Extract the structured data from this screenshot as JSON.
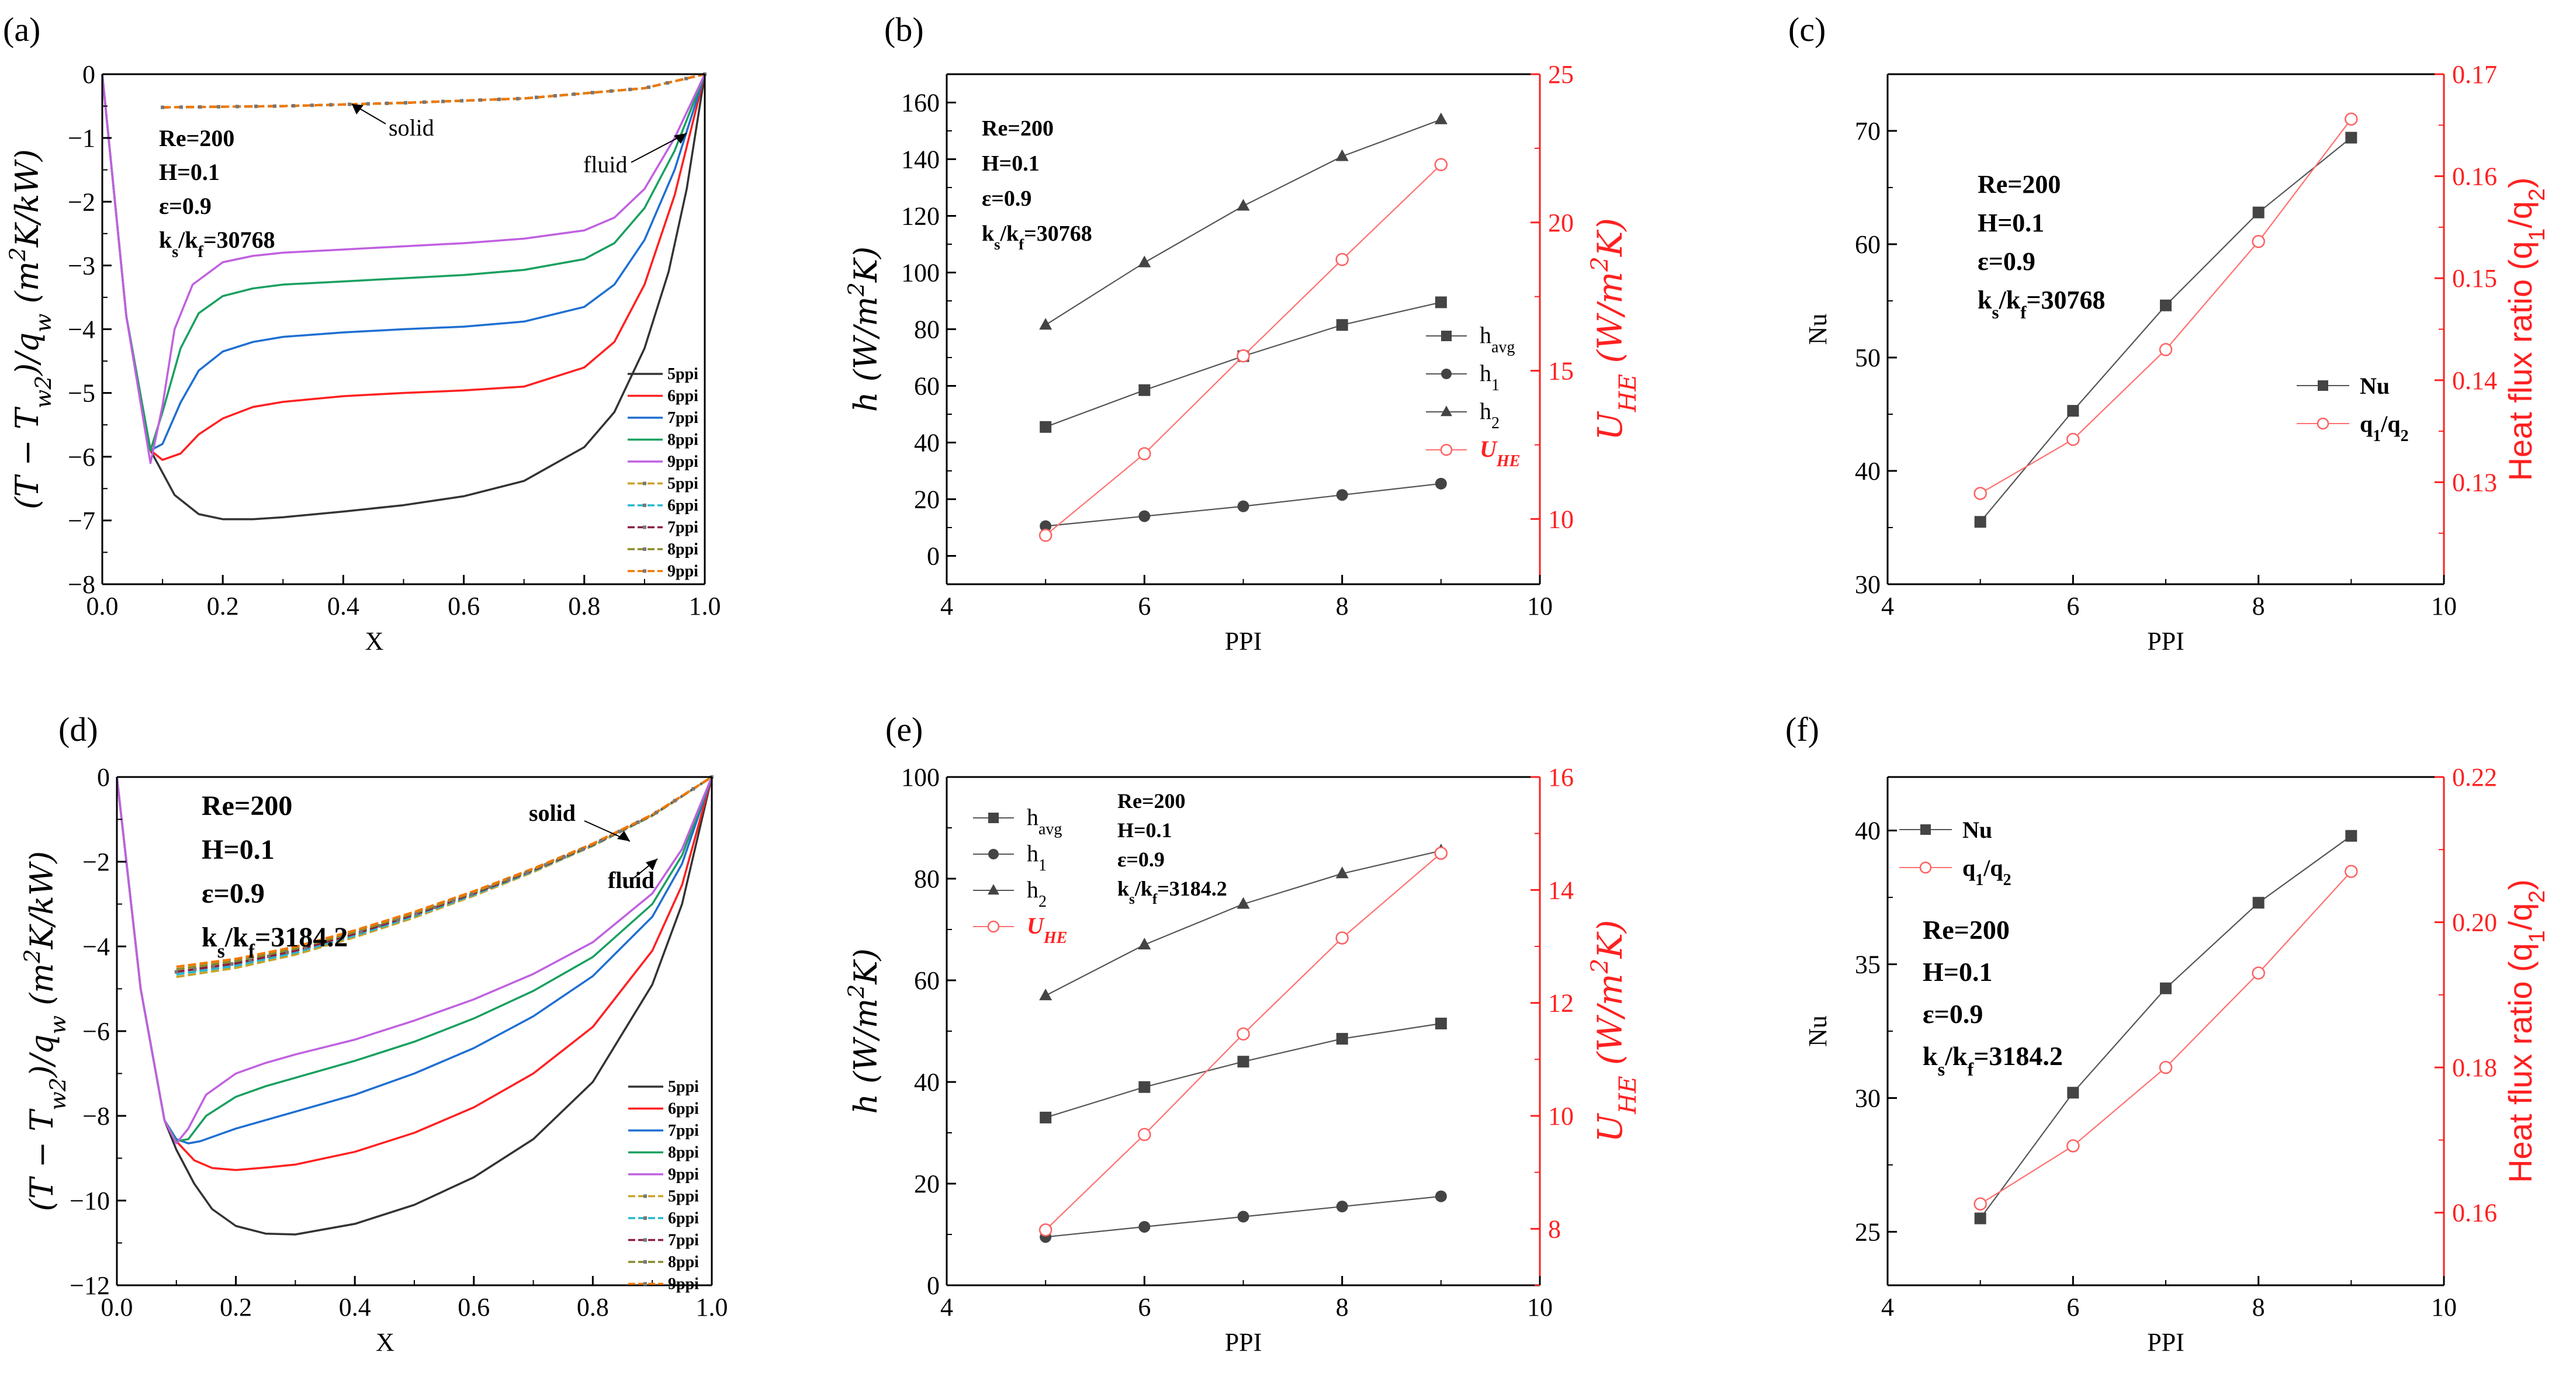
{
  "figure": {
    "panels": [
      "(a)",
      "(b)",
      "(c)",
      "(d)",
      "(e)",
      "(f)"
    ]
  },
  "chart_data": [
    {
      "panel": "(a)",
      "type": "line",
      "xlabel": "X",
      "ylabel": "(T − T_w2)/q_w (m²K/kW)",
      "xlim": [
        0,
        1
      ],
      "ylim": [
        -8,
        0
      ],
      "xticks": [
        "0.0",
        "0.2",
        "0.4",
        "0.6",
        "0.8",
        "1.0"
      ],
      "yticks": [
        "0",
        "−1",
        "−2",
        "−3",
        "−4",
        "−5",
        "−6",
        "−7",
        "−8"
      ],
      "annotation": [
        "Re=200",
        "H=0.1",
        "ε=0.9",
        "ks/kf=30768"
      ],
      "callouts": {
        "solid": "solid",
        "fluid": "fluid"
      },
      "legend": [
        "5ppi",
        "6ppi",
        "7ppi",
        "8ppi",
        "9ppi",
        "5ppi",
        "6ppi",
        "7ppi",
        "8ppi",
        "9ppi"
      ],
      "fluid_series": [
        {
          "name": "5ppi",
          "color": "#333333",
          "x": [
            0,
            0.04,
            0.08,
            0.12,
            0.16,
            0.2,
            0.25,
            0.3,
            0.4,
            0.5,
            0.6,
            0.7,
            0.8,
            0.85,
            0.9,
            0.94,
            0.97,
            1.0
          ],
          "y": [
            0,
            -3.8,
            -5.9,
            -6.6,
            -6.9,
            -6.98,
            -6.98,
            -6.95,
            -6.86,
            -6.76,
            -6.62,
            -6.38,
            -5.85,
            -5.3,
            -4.3,
            -3.1,
            -1.8,
            0
          ]
        },
        {
          "name": "6ppi",
          "color": "#ff2020",
          "x": [
            0,
            0.04,
            0.08,
            0.1,
            0.13,
            0.16,
            0.2,
            0.25,
            0.3,
            0.4,
            0.5,
            0.6,
            0.7,
            0.8,
            0.85,
            0.9,
            0.95,
            1.0
          ],
          "y": [
            0,
            -3.8,
            -5.9,
            -6.05,
            -5.95,
            -5.65,
            -5.4,
            -5.22,
            -5.14,
            -5.05,
            -5.0,
            -4.96,
            -4.9,
            -4.6,
            -4.2,
            -3.3,
            -1.9,
            0
          ]
        },
        {
          "name": "7ppi",
          "color": "#1f6fd1",
          "x": [
            0,
            0.04,
            0.08,
            0.1,
            0.13,
            0.16,
            0.2,
            0.25,
            0.3,
            0.4,
            0.5,
            0.6,
            0.7,
            0.8,
            0.85,
            0.9,
            0.95,
            1.0
          ],
          "y": [
            0,
            -3.8,
            -5.9,
            -5.8,
            -5.15,
            -4.65,
            -4.35,
            -4.2,
            -4.12,
            -4.05,
            -4.0,
            -3.96,
            -3.88,
            -3.65,
            -3.3,
            -2.6,
            -1.5,
            0
          ]
        },
        {
          "name": "8ppi",
          "color": "#1aa060",
          "x": [
            0,
            0.04,
            0.08,
            0.1,
            0.13,
            0.16,
            0.2,
            0.25,
            0.3,
            0.4,
            0.5,
            0.6,
            0.7,
            0.8,
            0.85,
            0.9,
            0.95,
            1.0
          ],
          "y": [
            0,
            -3.8,
            -5.9,
            -5.3,
            -4.3,
            -3.75,
            -3.48,
            -3.36,
            -3.3,
            -3.25,
            -3.2,
            -3.15,
            -3.07,
            -2.9,
            -2.65,
            -2.1,
            -1.2,
            0
          ]
        },
        {
          "name": "9ppi",
          "color": "#c060e0",
          "x": [
            0,
            0.04,
            0.08,
            0.1,
            0.12,
            0.15,
            0.2,
            0.25,
            0.3,
            0.4,
            0.5,
            0.6,
            0.7,
            0.8,
            0.85,
            0.9,
            0.95,
            1.0
          ],
          "y": [
            0,
            -3.8,
            -6.1,
            -5.2,
            -4.0,
            -3.3,
            -2.95,
            -2.85,
            -2.8,
            -2.75,
            -2.7,
            -2.65,
            -2.58,
            -2.45,
            -2.25,
            -1.8,
            -1.0,
            0
          ]
        }
      ],
      "solid_series": {
        "x": [
          0.1,
          0.3,
          0.5,
          0.7,
          0.9,
          1.0
        ],
        "y": [
          -0.52,
          -0.5,
          -0.45,
          -0.38,
          -0.22,
          0
        ]
      }
    },
    {
      "panel": "(b)",
      "type": "line",
      "xlabel": "PPI",
      "ylabel": "h (W/m²K)",
      "ylabel_right": "U_HE (W/m²K)",
      "x": [
        5,
        6,
        7,
        8,
        9
      ],
      "xlim": [
        4,
        10
      ],
      "ylim": [
        -10,
        170
      ],
      "ylim_right": [
        7.8,
        25
      ],
      "xticks": [
        "4",
        "6",
        "8",
        "10"
      ],
      "yticks": [
        "0",
        "20",
        "40",
        "60",
        "80",
        "100",
        "120",
        "140",
        "160"
      ],
      "yticks_right": [
        "10",
        "15",
        "20",
        "25"
      ],
      "annotation": [
        "Re=200",
        "H=0.1",
        "ε=0.9",
        "ks/kf=30768"
      ],
      "series": [
        {
          "name": "h_avg",
          "marker": "square",
          "values": [
            45.5,
            58.5,
            70.5,
            81.5,
            89.5
          ]
        },
        {
          "name": "h_1",
          "marker": "circle",
          "values": [
            10.5,
            14,
            17.5,
            21.5,
            25.5
          ]
        },
        {
          "name": "h_2",
          "marker": "triangle",
          "values": [
            81.5,
            103.5,
            123.5,
            141,
            154
          ]
        },
        {
          "name": "U_HE",
          "marker": "open-circle",
          "axis": "right",
          "values": [
            9.45,
            12.2,
            15.5,
            18.75,
            21.95
          ]
        }
      ],
      "legend": [
        "h",
        "h",
        "h",
        "U"
      ]
    },
    {
      "panel": "(c)",
      "type": "line",
      "xlabel": "PPI",
      "ylabel": "Nu",
      "ylabel_right": "Heat flux ratio (q1/q2)",
      "x": [
        5,
        6,
        7,
        8,
        9
      ],
      "xlim": [
        4,
        10
      ],
      "ylim": [
        30,
        75
      ],
      "ylim_right": [
        0.12,
        0.17
      ],
      "xticks": [
        "4",
        "6",
        "8",
        "10"
      ],
      "yticks": [
        "30",
        "40",
        "50",
        "60",
        "70"
      ],
      "yticks_right": [
        "0.13",
        "0.14",
        "0.15",
        "0.16",
        "0.17"
      ],
      "annotation": [
        "Re=200",
        "H=0.1",
        "ε=0.9",
        "ks/kf=30768"
      ],
      "series": [
        {
          "name": "Nu",
          "marker": "square",
          "values": [
            35.5,
            45.3,
            54.6,
            62.8,
            69.4
          ]
        },
        {
          "name": "q1/q2",
          "marker": "open-circle",
          "axis": "right",
          "values": [
            0.1289,
            0.1342,
            0.143,
            0.1536,
            0.1656
          ]
        }
      ],
      "legend": [
        "Nu",
        "q1/q2"
      ]
    },
    {
      "panel": "(d)",
      "type": "line",
      "xlabel": "X",
      "ylabel": "(T − T_w2)/q_w (m²K/kW)",
      "xlim": [
        0,
        1
      ],
      "ylim": [
        -12,
        0
      ],
      "xticks": [
        "0.0",
        "0.2",
        "0.4",
        "0.6",
        "0.8",
        "1.0"
      ],
      "yticks": [
        "0",
        "−2",
        "−4",
        "−6",
        "−8",
        "−10",
        "−12"
      ],
      "annotation": [
        "Re=200",
        "H=0.1",
        "ε=0.9",
        "ks/kf=3184.2"
      ],
      "callouts": {
        "solid": "solid",
        "fluid": "fluid"
      },
      "legend": [
        "5ppi",
        "6ppi",
        "7ppi",
        "8ppi",
        "9ppi",
        "5ppi",
        "6ppi",
        "7ppi",
        "8ppi",
        "9ppi"
      ],
      "fluid_series": [
        {
          "name": "5ppi",
          "color": "#333333",
          "x": [
            0,
            0.04,
            0.08,
            0.1,
            0.13,
            0.16,
            0.2,
            0.25,
            0.3,
            0.4,
            0.5,
            0.6,
            0.7,
            0.8,
            0.9,
            0.95,
            1.0
          ],
          "y": [
            0,
            -5,
            -8.1,
            -8.8,
            -9.6,
            -10.2,
            -10.6,
            -10.78,
            -10.8,
            -10.55,
            -10.1,
            -9.45,
            -8.55,
            -7.2,
            -4.9,
            -3.0,
            0
          ]
        },
        {
          "name": "6ppi",
          "color": "#ff2020",
          "x": [
            0,
            0.04,
            0.08,
            0.1,
            0.13,
            0.16,
            0.2,
            0.25,
            0.3,
            0.4,
            0.5,
            0.6,
            0.7,
            0.8,
            0.9,
            0.95,
            1.0
          ],
          "y": [
            0,
            -5,
            -8.1,
            -8.6,
            -9.05,
            -9.23,
            -9.28,
            -9.22,
            -9.15,
            -8.85,
            -8.4,
            -7.8,
            -7.0,
            -5.9,
            -4.1,
            -2.55,
            0
          ]
        },
        {
          "name": "7ppi",
          "color": "#1f6fd1",
          "x": [
            0,
            0.04,
            0.08,
            0.1,
            0.12,
            0.14,
            0.17,
            0.2,
            0.25,
            0.3,
            0.4,
            0.5,
            0.6,
            0.7,
            0.8,
            0.9,
            0.95,
            1.0
          ],
          "y": [
            0,
            -5,
            -8.1,
            -8.55,
            -8.65,
            -8.6,
            -8.45,
            -8.3,
            -8.1,
            -7.9,
            -7.5,
            -7.0,
            -6.4,
            -5.65,
            -4.7,
            -3.3,
            -2.05,
            0
          ]
        },
        {
          "name": "8ppi",
          "color": "#1aa060",
          "x": [
            0,
            0.04,
            0.08,
            0.1,
            0.12,
            0.15,
            0.2,
            0.25,
            0.3,
            0.4,
            0.5,
            0.6,
            0.7,
            0.8,
            0.9,
            0.95,
            1.0
          ],
          "y": [
            0,
            -5,
            -8.1,
            -8.6,
            -8.55,
            -8.0,
            -7.55,
            -7.3,
            -7.1,
            -6.7,
            -6.25,
            -5.7,
            -5.05,
            -4.25,
            -3.0,
            -1.85,
            0
          ]
        },
        {
          "name": "9ppi",
          "color": "#c060e0",
          "x": [
            0,
            0.04,
            0.08,
            0.1,
            0.12,
            0.15,
            0.2,
            0.25,
            0.3,
            0.4,
            0.5,
            0.6,
            0.7,
            0.8,
            0.9,
            0.95,
            1.0
          ],
          "y": [
            0,
            -5,
            -8.1,
            -8.65,
            -8.3,
            -7.5,
            -7.0,
            -6.75,
            -6.55,
            -6.2,
            -5.75,
            -5.25,
            -4.65,
            -3.9,
            -2.75,
            -1.7,
            0
          ]
        }
      ],
      "solid_series": {
        "x": [
          0.1,
          0.2,
          0.3,
          0.4,
          0.5,
          0.6,
          0.7,
          0.8,
          0.9,
          1.0
        ],
        "y": [
          -4.6,
          -4.4,
          -4.1,
          -3.7,
          -3.25,
          -2.75,
          -2.2,
          -1.6,
          -0.9,
          0
        ]
      }
    },
    {
      "panel": "(e)",
      "type": "line",
      "xlabel": "PPI",
      "ylabel": "h (W/m²K)",
      "ylabel_right": "U_HE (W/m²K)",
      "x": [
        5,
        6,
        7,
        8,
        9
      ],
      "xlim": [
        4,
        10
      ],
      "ylim": [
        0,
        100
      ],
      "ylim_right": [
        7,
        16
      ],
      "xticks": [
        "4",
        "6",
        "8",
        "10"
      ],
      "yticks": [
        "0",
        "20",
        "40",
        "60",
        "80",
        "100"
      ],
      "yticks_right": [
        "8",
        "10",
        "12",
        "14",
        "16"
      ],
      "annotation": [
        "Re=200",
        "H=0.1",
        "ε=0.9",
        "ks/kf=3184.2"
      ],
      "series": [
        {
          "name": "h_avg",
          "marker": "square",
          "values": [
            33,
            39,
            44,
            48.5,
            51.5
          ]
        },
        {
          "name": "h_1",
          "marker": "circle",
          "values": [
            9.5,
            11.5,
            13.5,
            15.5,
            17.5
          ]
        },
        {
          "name": "h_2",
          "marker": "triangle",
          "values": [
            57,
            67,
            75,
            81,
            85.5
          ]
        },
        {
          "name": "U_HE",
          "marker": "open-circle",
          "axis": "right",
          "values": [
            7.98,
            9.67,
            11.45,
            13.15,
            14.65
          ]
        }
      ],
      "legend": [
        "h",
        "h",
        "h",
        "U"
      ]
    },
    {
      "panel": "(f)",
      "type": "line",
      "xlabel": "PPI",
      "ylabel": "Nu",
      "ylabel_right": "Heat flux ratio (q1/q2)",
      "x": [
        5,
        6,
        7,
        8,
        9
      ],
      "xlim": [
        4,
        10
      ],
      "ylim": [
        23,
        42
      ],
      "ylim_right": [
        0.15,
        0.22
      ],
      "xticks": [
        "4",
        "6",
        "8",
        "10"
      ],
      "yticks": [
        "25",
        "30",
        "35",
        "40"
      ],
      "yticks_right": [
        "0.16",
        "0.18",
        "0.20",
        "0.22"
      ],
      "annotation": [
        "Re=200",
        "H=0.1",
        "ε=0.9",
        "ks/kf=3184.2"
      ],
      "series": [
        {
          "name": "Nu",
          "marker": "square",
          "values": [
            25.5,
            30.2,
            34.1,
            37.3,
            39.8
          ]
        },
        {
          "name": "q1/q2",
          "marker": "open-circle",
          "axis": "right",
          "values": [
            0.1612,
            0.1692,
            0.18,
            0.193,
            0.207
          ]
        }
      ],
      "legend": [
        "Nu",
        "q1/q2"
      ]
    }
  ]
}
